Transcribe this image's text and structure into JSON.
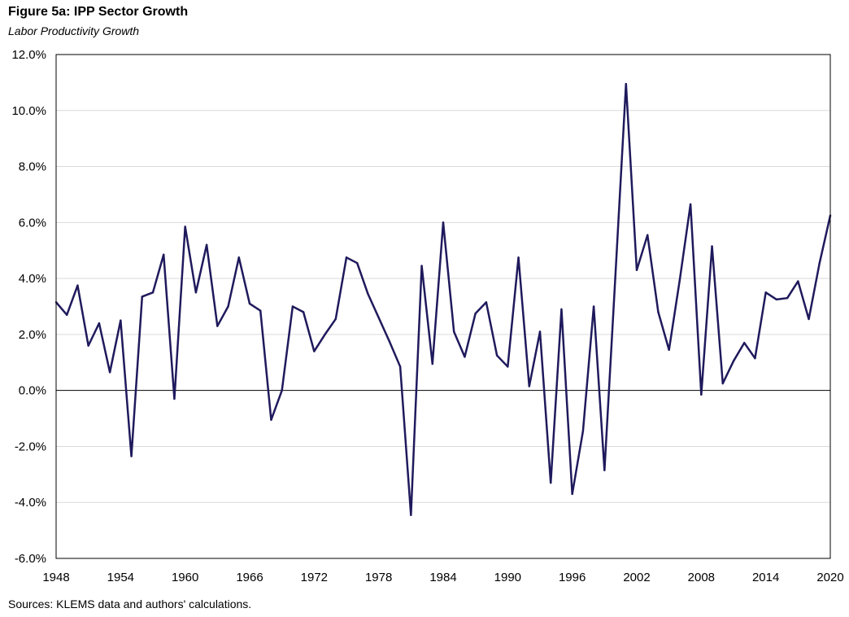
{
  "chart_data": {
    "type": "line",
    "title": "Figure 5a: IPP Sector Growth",
    "subtitle": "Labor Productivity Growth",
    "xlabel": "",
    "ylabel": "",
    "source": "Sources: KLEMS data and authors' calculations.",
    "ylim": [
      -6.0,
      12.0
    ],
    "xlim": [
      1948,
      2020
    ],
    "y_ticks": [
      "12.0%",
      "10.0%",
      "8.0%",
      "6.0%",
      "4.0%",
      "2.0%",
      "0.0%",
      "-2.0%",
      "-4.0%",
      "-6.0%"
    ],
    "y_tick_values": [
      12,
      10,
      8,
      6,
      4,
      2,
      0,
      -2,
      -4,
      -6
    ],
    "x_ticks": [
      "1948",
      "1954",
      "1960",
      "1966",
      "1972",
      "1978",
      "1984",
      "1990",
      "1996",
      "2002",
      "2008",
      "2014",
      "2020"
    ],
    "x_tick_values": [
      1948,
      1954,
      1960,
      1966,
      1972,
      1978,
      1984,
      1990,
      1996,
      2002,
      2008,
      2014,
      2020
    ],
    "grid": true,
    "series": [
      {
        "color": "#1f1a5c",
        "x": [
          1948,
          1949,
          1950,
          1951,
          1952,
          1953,
          1954,
          1955,
          1956,
          1957,
          1958,
          1959,
          1960,
          1961,
          1962,
          1963,
          1964,
          1965,
          1966,
          1967,
          1968,
          1969,
          1970,
          1971,
          1972,
          1973,
          1974,
          1975,
          1976,
          1977,
          1978,
          1979,
          1980,
          1981,
          1982,
          1983,
          1984,
          1985,
          1986,
          1987,
          1988,
          1989,
          1990,
          1991,
          1992,
          1993,
          1994,
          1995,
          1996,
          1997,
          1998,
          1999,
          2000,
          2001,
          2002,
          2003,
          2004,
          2005,
          2006,
          2007,
          2008,
          2009,
          2010,
          2011,
          2012,
          2013,
          2014,
          2015,
          2016,
          2017,
          2018,
          2019,
          2020
        ],
        "values": [
          3.15,
          2.7,
          3.75,
          1.6,
          2.4,
          0.65,
          2.5,
          -2.35,
          3.35,
          3.5,
          4.85,
          -0.3,
          5.85,
          3.5,
          5.2,
          2.3,
          3.0,
          4.75,
          3.1,
          2.85,
          -1.05,
          0.0,
          3.0,
          2.8,
          1.4,
          2.0,
          2.55,
          4.75,
          4.55,
          3.45,
          2.6,
          1.75,
          0.85,
          -4.45,
          4.45,
          0.95,
          6.0,
          2.1,
          1.2,
          2.75,
          3.15,
          1.25,
          0.85,
          4.75,
          0.15,
          2.1,
          -3.3,
          2.9,
          -3.7,
          -1.45,
          3.0,
          -2.85,
          4.0,
          10.95,
          4.3,
          5.55,
          2.8,
          1.45,
          3.95,
          6.65,
          -0.15,
          5.15,
          0.25,
          1.05,
          1.7,
          1.15,
          3.5,
          3.25,
          3.3,
          3.9,
          2.55,
          4.55,
          6.25
        ]
      }
    ]
  }
}
